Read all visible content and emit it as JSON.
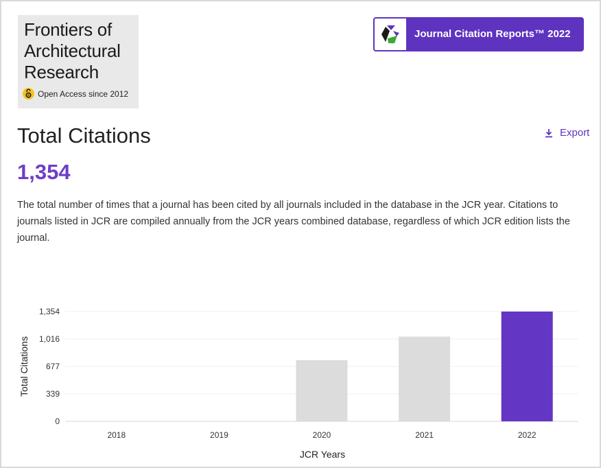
{
  "journal": {
    "title": "Frontiers of Architectural Research",
    "open_access": "Open Access since 2012"
  },
  "badge": {
    "label": "Journal Citation Reports™ 2022"
  },
  "metric": {
    "title": "Total Citations",
    "value": "1,354",
    "export_label": "Export",
    "description": "The total number of times that a journal has been cited by all journals included in the database in the JCR year. Citations to journals listed in JCR are compiled annually from the JCR years combined database, regardless of which JCR edition lists the journal."
  },
  "colors": {
    "accent": "#5e33bf",
    "bar_default": "#dcdcdc",
    "bar_highlight": "#6436c4"
  },
  "chart_data": {
    "type": "bar",
    "title": "",
    "xlabel": "JCR Years",
    "ylabel": "Total Citations",
    "categories": [
      "2018",
      "2019",
      "2020",
      "2021",
      "2022"
    ],
    "values": [
      0,
      0,
      755,
      1045,
      1354
    ],
    "highlight": "2022",
    "ylim": [
      0,
      1354
    ],
    "yticks": [
      0,
      339,
      677,
      1016,
      1354
    ],
    "ytick_labels": [
      "0",
      "339",
      "677",
      "1,016",
      "1,354"
    ],
    "grid": true
  }
}
